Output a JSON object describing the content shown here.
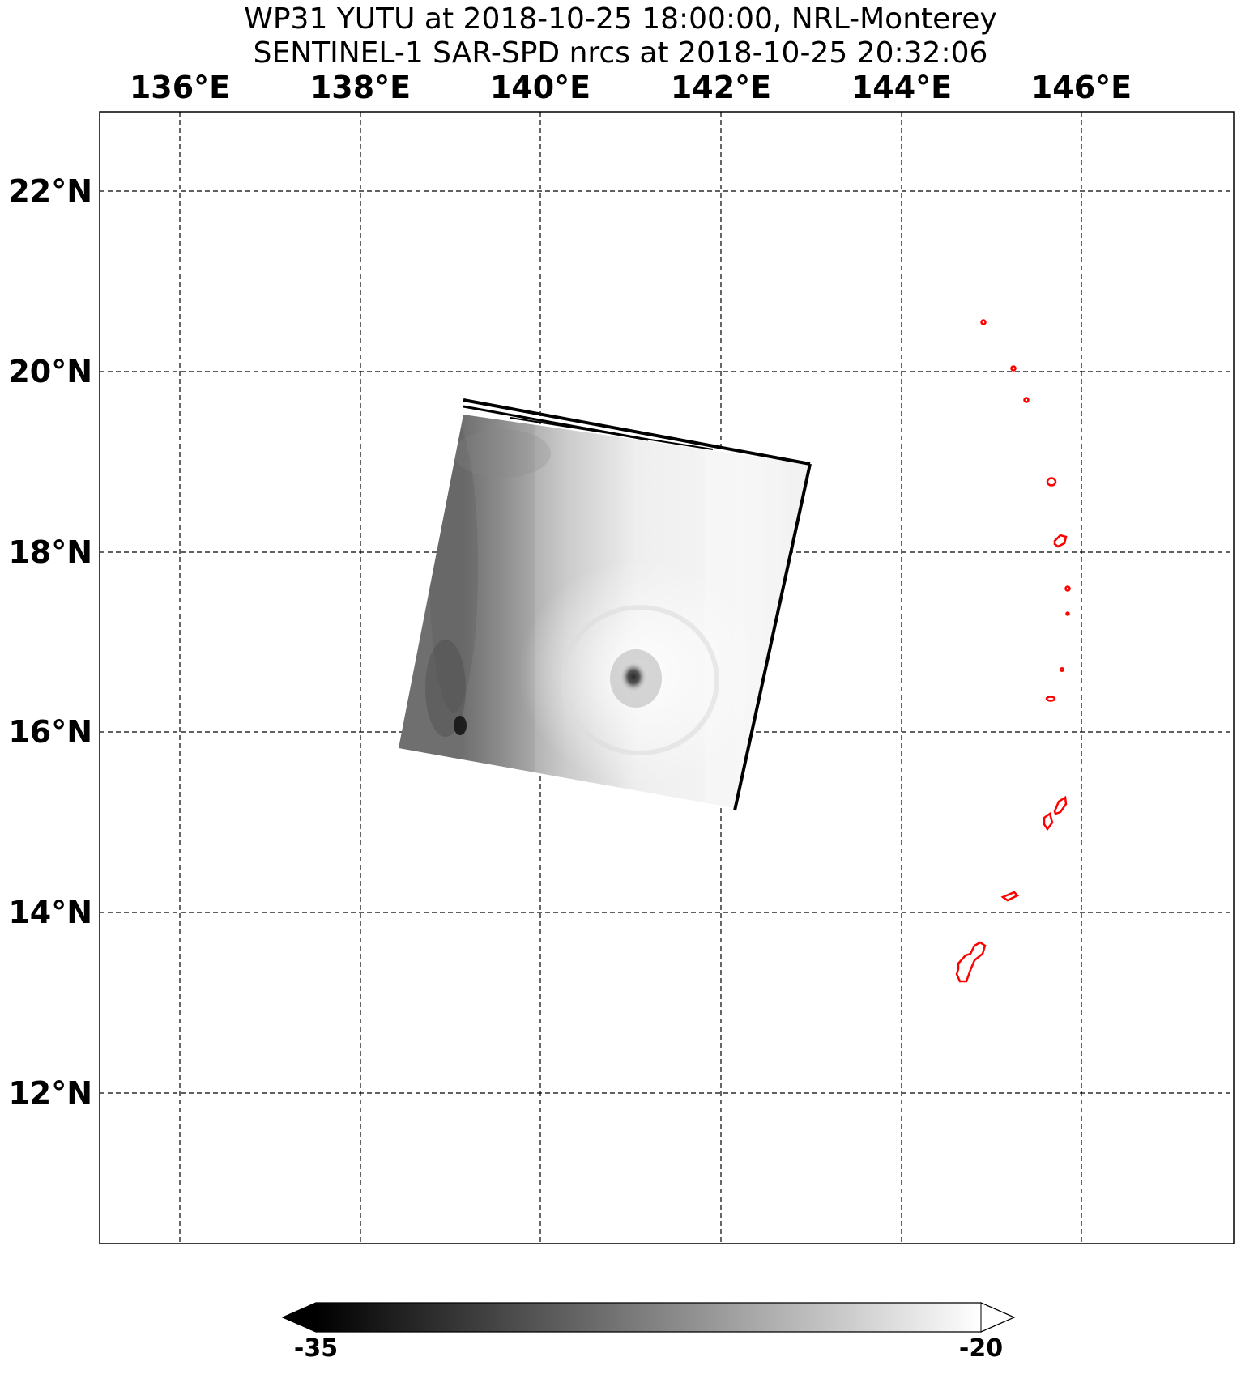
{
  "title": {
    "line1": "WP31 YUTU at 2018-10-25 18:00:00, NRL-Monterey",
    "line2": "SENTINEL-1 SAR-SPD nrcs at 2018-10-25 20:32:06"
  },
  "map": {
    "lon_range": [
      135.1,
      147.7
    ],
    "lat_range": [
      10.3,
      22.9
    ],
    "grid": true,
    "grid_style": "dashed",
    "lon_ticks": [
      {
        "value": 136,
        "label": "136°E"
      },
      {
        "value": 138,
        "label": "138°E"
      },
      {
        "value": 140,
        "label": "140°E"
      },
      {
        "value": 142,
        "label": "142°E"
      },
      {
        "value": 144,
        "label": "144°E"
      },
      {
        "value": 146,
        "label": "146°E"
      }
    ],
    "lat_ticks": [
      {
        "value": 22,
        "label": "22°N"
      },
      {
        "value": 20,
        "label": "20°N"
      },
      {
        "value": 18,
        "label": "18°N"
      },
      {
        "value": 16,
        "label": "16°N"
      },
      {
        "value": 14,
        "label": "14°N"
      },
      {
        "value": 12,
        "label": "12°N"
      }
    ],
    "coastline_color": "#ff0000",
    "sar_swath_corners": [
      [
        139.13,
        19.5
      ],
      [
        142.98,
        18.98
      ],
      [
        142.15,
        15.1
      ],
      [
        138.35,
        15.83
      ]
    ],
    "storm_eye": {
      "lon": 141.05,
      "lat": 16.62
    }
  },
  "colorbar": {
    "min_label": "-35",
    "max_label": "-20",
    "min": -35,
    "max": -20,
    "colors": [
      "#000000",
      "#ffffff"
    ],
    "extend": "both"
  }
}
